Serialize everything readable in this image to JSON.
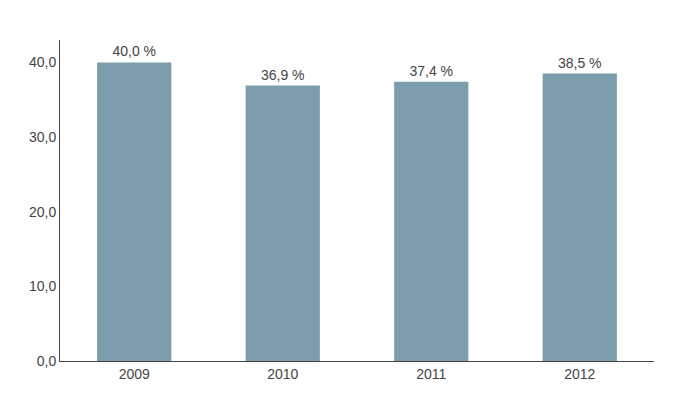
{
  "chart_data": {
    "type": "bar",
    "categories": [
      "2009",
      "2010",
      "2011",
      "2012"
    ],
    "values": [
      40.0,
      36.9,
      37.4,
      38.5
    ],
    "value_labels": [
      "40,0 %",
      "36,9 %",
      "37,4 %",
      "38,5 %"
    ],
    "data_labels": true,
    "color": "#7c9dab",
    "ylim": [
      0,
      43
    ],
    "yticks": [
      {
        "value": 0,
        "label": "0,0"
      },
      {
        "value": 10,
        "label": "10,0"
      },
      {
        "value": 20,
        "label": "20,0"
      },
      {
        "value": 30,
        "label": "30,0"
      },
      {
        "value": 40,
        "label": "40,0"
      }
    ],
    "grid": false
  }
}
